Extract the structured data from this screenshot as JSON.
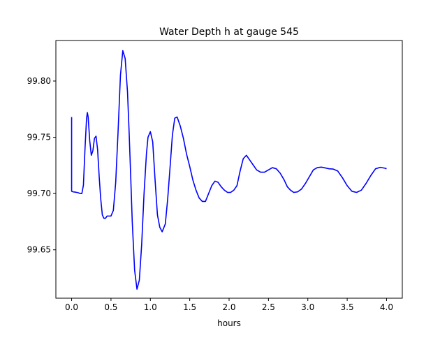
{
  "chart_data": {
    "type": "line",
    "title": "Water Depth h at gauge 545",
    "xlabel": "hours",
    "ylabel": "",
    "xlim": [
      -0.2,
      4.2
    ],
    "ylim": [
      99.607,
      99.836
    ],
    "xticks": [
      0.0,
      0.5,
      1.0,
      1.5,
      2.0,
      2.5,
      3.0,
      3.5,
      4.0
    ],
    "xtick_labels": [
      "0.0",
      "0.5",
      "1.0",
      "1.5",
      "2.0",
      "2.5",
      "3.0",
      "3.5",
      "4.0"
    ],
    "yticks": [
      99.65,
      99.7,
      99.75,
      99.8
    ],
    "ytick_labels": [
      "99.65",
      "99.70",
      "99.75",
      "99.80"
    ],
    "grid": false,
    "legend": "none",
    "series": [
      {
        "color": "#0000ff",
        "x": [
          0.0,
          0.0,
          0.02,
          0.05,
          0.08,
          0.11,
          0.13,
          0.15,
          0.17,
          0.19,
          0.2,
          0.21,
          0.23,
          0.25,
          0.27,
          0.29,
          0.31,
          0.33,
          0.35,
          0.37,
          0.39,
          0.41,
          0.43,
          0.45,
          0.47,
          0.5,
          0.53,
          0.56,
          0.59,
          0.62,
          0.65,
          0.68,
          0.71,
          0.73,
          0.75,
          0.77,
          0.8,
          0.83,
          0.86,
          0.89,
          0.92,
          0.95,
          0.97,
          1.0,
          1.03,
          1.06,
          1.09,
          1.12,
          1.15,
          1.19,
          1.22,
          1.25,
          1.28,
          1.31,
          1.34,
          1.38,
          1.42,
          1.46,
          1.5,
          1.54,
          1.58,
          1.62,
          1.66,
          1.7,
          1.74,
          1.78,
          1.82,
          1.86,
          1.9,
          1.94,
          1.98,
          2.02,
          2.06,
          2.1,
          2.14,
          2.18,
          2.22,
          2.26,
          2.3,
          2.35,
          2.4,
          2.45,
          2.5,
          2.55,
          2.6,
          2.65,
          2.7,
          2.74,
          2.78,
          2.82,
          2.87,
          2.92,
          2.97,
          3.02,
          3.07,
          3.12,
          3.17,
          3.22,
          3.27,
          3.32,
          3.38,
          3.44,
          3.5,
          3.56,
          3.62,
          3.68,
          3.74,
          3.8,
          3.86,
          3.92,
          3.98,
          4.0
        ],
        "y": [
          99.768,
          99.702,
          99.7015,
          99.7012,
          99.7008,
          99.7,
          99.7,
          99.7075,
          99.74,
          99.767,
          99.772,
          99.768,
          99.747,
          99.734,
          99.738,
          99.749,
          99.751,
          99.739,
          99.715,
          99.695,
          99.681,
          99.678,
          99.678,
          99.68,
          99.68,
          99.68,
          99.685,
          99.71,
          99.755,
          99.805,
          99.827,
          99.82,
          99.79,
          99.755,
          99.716,
          99.675,
          99.632,
          99.615,
          99.623,
          99.655,
          99.7,
          99.735,
          99.75,
          99.755,
          99.746,
          99.712,
          99.681,
          99.67,
          99.666,
          99.673,
          99.695,
          99.723,
          99.752,
          99.767,
          99.768,
          99.76,
          99.749,
          99.735,
          99.724,
          99.712,
          99.703,
          99.696,
          99.693,
          99.693,
          99.7,
          99.707,
          99.711,
          99.71,
          99.706,
          99.703,
          99.701,
          99.701,
          99.703,
          99.707,
          99.72,
          99.731,
          99.734,
          99.73,
          99.726,
          99.721,
          99.719,
          99.719,
          99.721,
          99.723,
          99.722,
          99.718,
          99.712,
          99.706,
          99.703,
          99.701,
          99.7015,
          99.704,
          99.709,
          99.715,
          99.721,
          99.723,
          99.7235,
          99.7228,
          99.722,
          99.7218,
          99.72,
          99.714,
          99.707,
          99.702,
          99.701,
          99.703,
          99.709,
          99.716,
          99.722,
          99.7233,
          99.7225,
          99.722
        ]
      }
    ]
  }
}
